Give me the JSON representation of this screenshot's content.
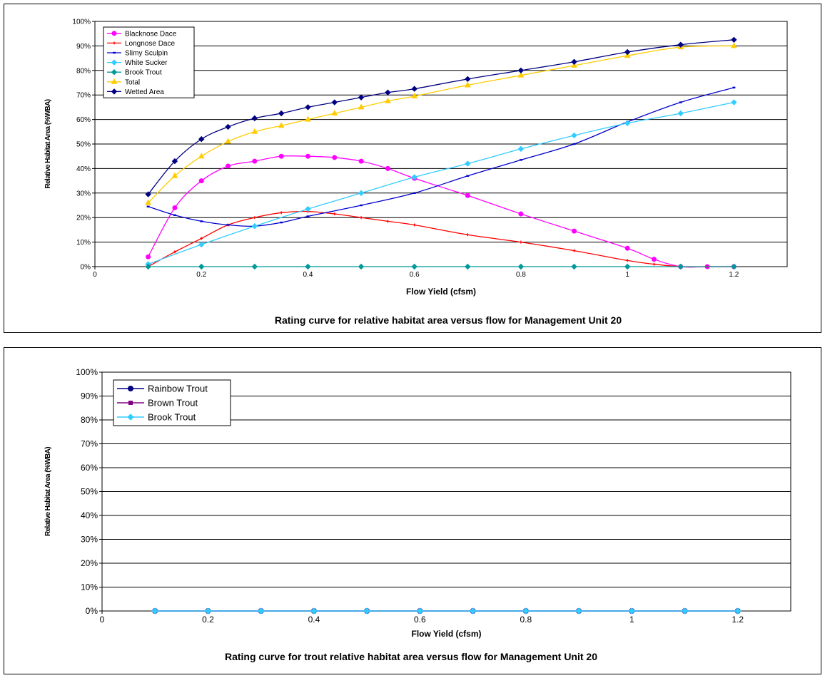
{
  "chart_data": [
    {
      "type": "line",
      "title": "Rating curve for relative habitat area versus flow for Management Unit 20",
      "xlabel": "Flow Yield (cfsm)",
      "ylabel": "Relative Habitat Area (%WBA)",
      "xlim": [
        0,
        1.3
      ],
      "ylim": [
        0,
        100
      ],
      "x_ticks": [
        "0",
        "0.2",
        "0.4",
        "0.6",
        "0.8",
        "1",
        "1.2"
      ],
      "y_ticks": [
        "0%",
        "10%",
        "20%",
        "30%",
        "40%",
        "50%",
        "60%",
        "70%",
        "80%",
        "90%",
        "100%"
      ],
      "grid": "horizontal",
      "legend_position": "top-left",
      "series": [
        {
          "name": "Blacknose Dace",
          "color": "#ff00ff",
          "marker": "circle",
          "x": [
            0.1,
            0.15,
            0.2,
            0.25,
            0.3,
            0.35,
            0.4,
            0.45,
            0.5,
            0.55,
            0.6,
            0.7,
            0.8,
            0.9,
            1.0,
            1.05,
            1.1,
            1.15,
            1.2
          ],
          "y": [
            4,
            24,
            35,
            41,
            43,
            45,
            45,
            44.5,
            43,
            40,
            36,
            29,
            21.5,
            14.5,
            7.5,
            3,
            0,
            0,
            0
          ]
        },
        {
          "name": "Longnose Dace",
          "color": "#ff0000",
          "marker": "plus",
          "x": [
            0.1,
            0.15,
            0.2,
            0.25,
            0.3,
            0.35,
            0.4,
            0.45,
            0.5,
            0.55,
            0.6,
            0.7,
            0.8,
            0.9,
            1.0,
            1.05,
            1.1,
            1.15,
            1.2
          ],
          "y": [
            0,
            6,
            11.5,
            17,
            20,
            22,
            22.5,
            21.5,
            20,
            18.5,
            17,
            13,
            10,
            6.5,
            2.5,
            1,
            0,
            0,
            0
          ]
        },
        {
          "name": "Slimy Sculpin",
          "color": "#0000cc",
          "marker": "dash",
          "x": [
            0.1,
            0.15,
            0.2,
            0.25,
            0.3,
            0.35,
            0.4,
            0.5,
            0.6,
            0.7,
            0.8,
            0.9,
            1.0,
            1.1,
            1.2
          ],
          "y": [
            24.5,
            21,
            18.5,
            17,
            16.5,
            18,
            20.5,
            25,
            30,
            37,
            43.5,
            50,
            59,
            67,
            73
          ]
        },
        {
          "name": "White Sucker",
          "color": "#33ccff",
          "marker": "diamond",
          "x": [
            0.1,
            0.2,
            0.3,
            0.4,
            0.5,
            0.6,
            0.7,
            0.8,
            0.9,
            1.0,
            1.1,
            1.2
          ],
          "y": [
            1,
            9,
            16.5,
            23.5,
            30,
            36.5,
            42,
            48,
            53.5,
            58.5,
            62.5,
            67
          ]
        },
        {
          "name": "Brook Trout",
          "color": "#009999",
          "marker": "diamond",
          "x": [
            0.1,
            0.2,
            0.3,
            0.4,
            0.5,
            0.6,
            0.7,
            0.8,
            0.9,
            1.0,
            1.1,
            1.2
          ],
          "y": [
            0,
            0,
            0,
            0,
            0,
            0,
            0,
            0,
            0,
            0,
            0,
            0
          ]
        },
        {
          "name": "Total",
          "color": "#ffcc00",
          "marker": "triangle",
          "x": [
            0.1,
            0.15,
            0.2,
            0.25,
            0.3,
            0.35,
            0.4,
            0.45,
            0.5,
            0.55,
            0.6,
            0.7,
            0.8,
            0.9,
            1.0,
            1.1,
            1.2
          ],
          "y": [
            26,
            37,
            45,
            51,
            55,
            57.5,
            60,
            62.5,
            65,
            67.5,
            69.5,
            74,
            78,
            82,
            86,
            89.5,
            90
          ]
        },
        {
          "name": "Wetted Area",
          "color": "#000080",
          "marker": "diamond",
          "x": [
            0.1,
            0.15,
            0.2,
            0.25,
            0.3,
            0.35,
            0.4,
            0.45,
            0.5,
            0.55,
            0.6,
            0.7,
            0.8,
            0.9,
            1.0,
            1.1,
            1.2
          ],
          "y": [
            29.5,
            43,
            52,
            57,
            60.5,
            62.5,
            65,
            67,
            69,
            71,
            72.5,
            76.5,
            80,
            83.5,
            87.5,
            90.5,
            92.5
          ]
        }
      ]
    },
    {
      "type": "line",
      "title": "Rating curve for trout relative habitat area versus flow for Management Unit 20",
      "xlabel": "Flow Yield (cfsm)",
      "ylabel": "Relative Habitat Area (%WBA)",
      "xlim": [
        0,
        1.3
      ],
      "ylim": [
        0,
        100
      ],
      "x_ticks": [
        "0",
        "0.2",
        "0.4",
        "0.6",
        "0.8",
        "1",
        "1.2"
      ],
      "y_ticks": [
        "0%",
        "10%",
        "20%",
        "30%",
        "40%",
        "50%",
        "60%",
        "70%",
        "80%",
        "90%",
        "100%"
      ],
      "grid": "horizontal",
      "legend_position": "top-left",
      "series": [
        {
          "name": "Rainbow Trout",
          "color": "#000080",
          "marker": "circle",
          "x": [
            0.1,
            0.2,
            0.3,
            0.4,
            0.5,
            0.6,
            0.7,
            0.8,
            0.9,
            1.0,
            1.1,
            1.2
          ],
          "y": [
            0,
            0,
            0,
            0,
            0,
            0,
            0,
            0,
            0,
            0,
            0,
            0
          ]
        },
        {
          "name": "Brown Trout",
          "color": "#800080",
          "marker": "square",
          "x": [
            0.1,
            0.2,
            0.3,
            0.4,
            0.5,
            0.6,
            0.7,
            0.8,
            0.9,
            1.0,
            1.1,
            1.2
          ],
          "y": [
            0,
            0,
            0,
            0,
            0,
            0,
            0,
            0,
            0,
            0,
            0,
            0
          ]
        },
        {
          "name": "Brook Trout",
          "color": "#33ccff",
          "marker": "diamond",
          "x": [
            0.1,
            0.2,
            0.3,
            0.4,
            0.5,
            0.6,
            0.7,
            0.8,
            0.9,
            1.0,
            1.1,
            1.2
          ],
          "y": [
            0,
            0,
            0,
            0,
            0,
            0,
            0,
            0,
            0,
            0,
            0,
            0
          ]
        }
      ]
    }
  ]
}
